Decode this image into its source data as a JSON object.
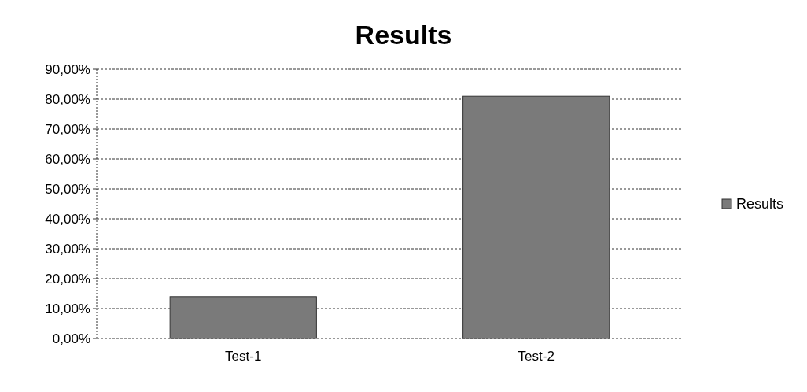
{
  "chart_data": {
    "type": "bar",
    "title": "Results",
    "categories": [
      "Test-1",
      "Test-2"
    ],
    "series": [
      {
        "name": "Results",
        "color": "#7a7a7a",
        "values": [
          14,
          81
        ]
      }
    ],
    "ylim": [
      0,
      90
    ],
    "yticks": [
      {
        "value": 0,
        "label": "0,00%"
      },
      {
        "value": 10,
        "label": "10,00%"
      },
      {
        "value": 20,
        "label": "20,00%"
      },
      {
        "value": 30,
        "label": "30,00%"
      },
      {
        "value": 40,
        "label": "40,00%"
      },
      {
        "value": 50,
        "label": "50,00%"
      },
      {
        "value": 60,
        "label": "60,00%"
      },
      {
        "value": 70,
        "label": "70,00%"
      },
      {
        "value": 80,
        "label": "80,00%"
      },
      {
        "value": 90,
        "label": "90,00%"
      }
    ],
    "grid": "y",
    "legend": "right"
  }
}
